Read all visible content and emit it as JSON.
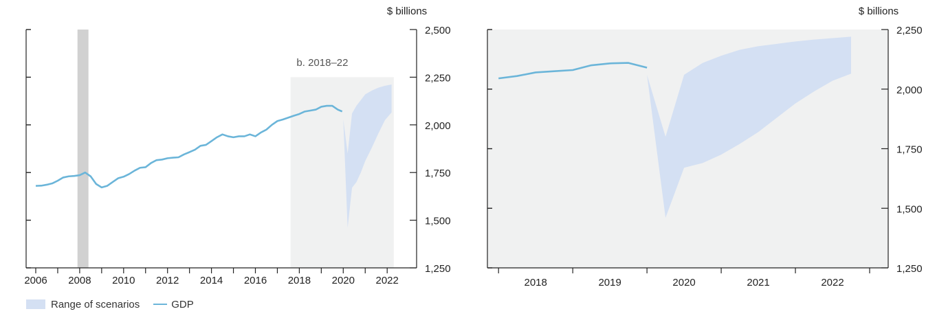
{
  "colors": {
    "gdp": "#6bb5d9",
    "range": "#d4e0f3",
    "shade": "#f0f1f1",
    "recession": "#d1d1d1",
    "axis": "#222222"
  },
  "legend": {
    "range_label": "Range of scenarios",
    "gdp_label": "GDP"
  },
  "chart_data": [
    {
      "type": "line",
      "panel": "left",
      "ylabel": "$ billions",
      "annotation": "b. 2018–22",
      "xlim": [
        2005.6,
        2023.0
      ],
      "ylim": [
        1250,
        2500
      ],
      "yticks": [
        1250,
        1500,
        1750,
        2000,
        2250,
        2500
      ],
      "ytick_labels": [
        "1,250",
        "1,500",
        "1,750",
        "2,000",
        "2,250",
        "2,500"
      ],
      "xticks": [
        2006,
        2008,
        2010,
        2012,
        2014,
        2016,
        2018,
        2020,
        2022
      ],
      "xtick_labels": [
        "2006",
        "2008",
        "2010",
        "2012",
        "2014",
        "2016",
        "2018",
        "2020",
        "2022"
      ],
      "recession": [
        2007.9,
        2008.4
      ],
      "shaded_region": {
        "x": [
          2017.6,
          2022.3
        ],
        "y": [
          1250,
          2250
        ]
      },
      "gdp": {
        "x": [
          2006.0,
          2006.25,
          2006.5,
          2006.75,
          2007.0,
          2007.25,
          2007.5,
          2007.75,
          2008.0,
          2008.25,
          2008.5,
          2008.75,
          2009.0,
          2009.25,
          2009.5,
          2009.75,
          2010.0,
          2010.25,
          2010.5,
          2010.75,
          2011.0,
          2011.25,
          2011.5,
          2011.75,
          2012.0,
          2012.25,
          2012.5,
          2012.75,
          2013.0,
          2013.25,
          2013.5,
          2013.75,
          2014.0,
          2014.25,
          2014.5,
          2014.75,
          2015.0,
          2015.25,
          2015.5,
          2015.75,
          2016.0,
          2016.25,
          2016.5,
          2016.75,
          2017.0,
          2017.25,
          2017.5,
          2017.75,
          2018.0,
          2018.25,
          2018.5,
          2018.75,
          2019.0,
          2019.25,
          2019.5,
          2019.75,
          2019.95
        ],
        "y": [
          1680,
          1681,
          1686,
          1693,
          1707,
          1724,
          1730,
          1732,
          1736,
          1750,
          1730,
          1690,
          1672,
          1680,
          1700,
          1720,
          1728,
          1742,
          1760,
          1775,
          1778,
          1800,
          1815,
          1818,
          1825,
          1828,
          1830,
          1845,
          1857,
          1870,
          1890,
          1895,
          1915,
          1935,
          1950,
          1940,
          1935,
          1940,
          1940,
          1950,
          1940,
          1960,
          1975,
          2000,
          2020,
          2028,
          2038,
          2048,
          2057,
          2070,
          2075,
          2080,
          2095,
          2100,
          2100,
          2080,
          2070
        ]
      },
      "range": {
        "x": [
          2020.0,
          2020.2,
          2020.4,
          2020.6,
          2020.8,
          2021.0,
          2021.3,
          2021.6,
          2021.9,
          2022.2
        ],
        "upper": [
          2030,
          1850,
          2060,
          2100,
          2130,
          2160,
          2180,
          2195,
          2205,
          2212
        ],
        "lower": [
          2030,
          1460,
          1670,
          1700,
          1750,
          1810,
          1880,
          1955,
          2025,
          2065
        ]
      }
    },
    {
      "type": "line",
      "panel": "right",
      "ylabel": "$ billions",
      "xlim": [
        2017.6,
        2023.0
      ],
      "ylim": [
        1250,
        2250
      ],
      "yticks": [
        1250,
        1500,
        1750,
        2000,
        2250
      ],
      "ytick_labels": [
        "1,250",
        "1,500",
        "1,750",
        "2,000",
        "2,250"
      ],
      "xticks": [
        2018,
        2019,
        2020,
        2021,
        2022
      ],
      "xtick_labels": [
        "2018",
        "2019",
        "2020",
        "2021",
        "2022"
      ],
      "year_boundaries": [
        2017.75,
        2018.75,
        2019.75,
        2020.75,
        2021.75,
        2022.75
      ],
      "gdp": {
        "x": [
          2017.75,
          2018.0,
          2018.25,
          2018.5,
          2018.75,
          2019.0,
          2019.25,
          2019.5,
          2019.75
        ],
        "y": [
          2045,
          2055,
          2070,
          2075,
          2080,
          2100,
          2108,
          2110,
          2090
        ]
      },
      "range": {
        "x": [
          2019.75,
          2020.0,
          2020.25,
          2020.5,
          2020.75,
          2021.0,
          2021.25,
          2021.5,
          2021.75,
          2022.0,
          2022.25,
          2022.5
        ],
        "upper": [
          2060,
          1800,
          2060,
          2110,
          2140,
          2165,
          2180,
          2190,
          2200,
          2208,
          2214,
          2220
        ],
        "lower": [
          2060,
          1460,
          1670,
          1690,
          1725,
          1770,
          1820,
          1880,
          1940,
          1990,
          2035,
          2065
        ]
      }
    }
  ]
}
